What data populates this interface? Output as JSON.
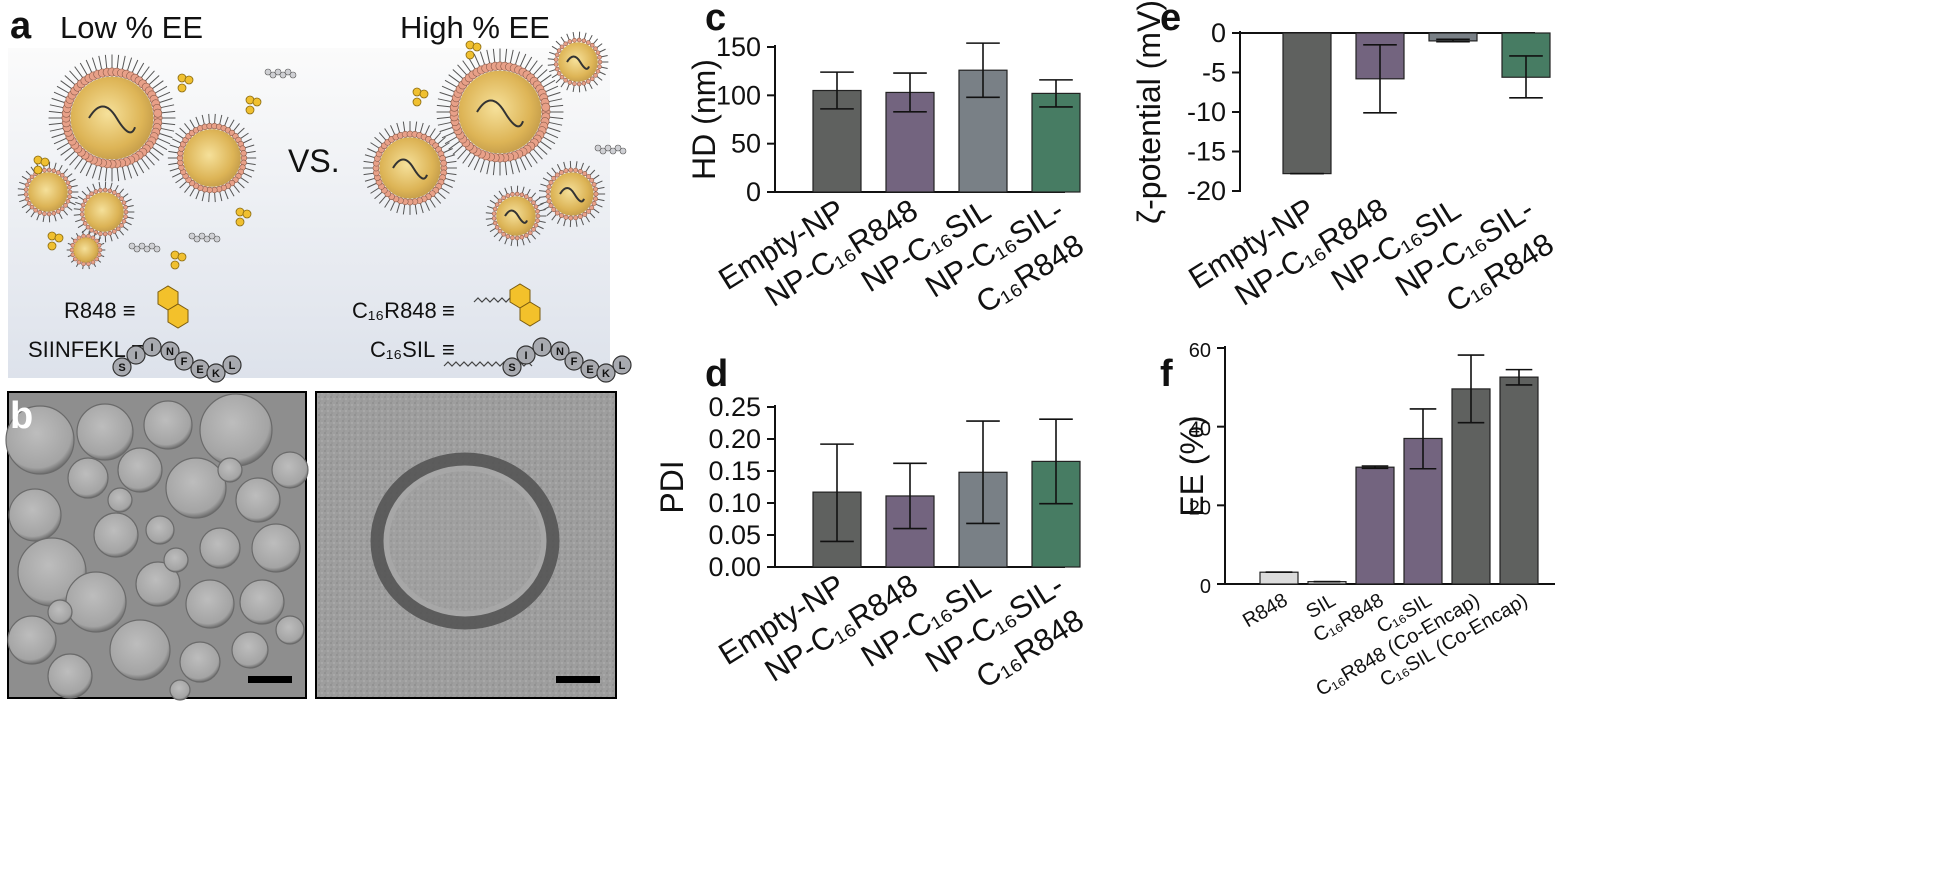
{
  "panel_a": {
    "letter": "a",
    "left_title": "Low % EE",
    "right_title": "High % EE",
    "vs": "VS.",
    "legend_left": [
      "R848 ≡",
      "SIINFEKL ≡"
    ],
    "legend_right": [
      "C₁₆R848",
      "C₁₆SIL"
    ],
    "equiv": "≡",
    "peptide_letters": [
      "S",
      "I",
      "I",
      "N",
      "F",
      "E",
      "K",
      "L"
    ],
    "colors": {
      "shell": "#e8a088",
      "core": "#e0b030",
      "peptide": "#a8aab0",
      "background_top": "#fafafa",
      "background_bottom": "#dfe3ec"
    }
  },
  "panel_b": {
    "letter": "b"
  },
  "chart_data": [
    {
      "panel": "c",
      "type": "bar",
      "ylabel": "HD (nm)",
      "ylim": [
        0,
        150
      ],
      "yticks": [
        "0",
        "50",
        "100",
        "150"
      ],
      "categories": [
        "Empty-NP",
        "NP-C₁₆R848",
        "NP-C₁₆SIL",
        "NP-C₁₆SIL-"
      ],
      "category_second_lines": [
        "",
        "",
        "",
        "C₁₆R848"
      ],
      "values": [
        105,
        103,
        126,
        102
      ],
      "errors_upper": [
        124,
        123,
        154,
        116
      ],
      "errors_lower": [
        86,
        83,
        98,
        88
      ],
      "colors": [
        "#5f615f",
        "#73647f",
        "#798086",
        "#477c63"
      ]
    },
    {
      "panel": "d",
      "type": "bar",
      "ylabel": "PDI",
      "ylim": [
        0,
        0.25
      ],
      "yticks": [
        "0.00",
        "0.05",
        "0.10",
        "0.15",
        "0.20",
        "0.25"
      ],
      "categories": [
        "Empty-NP",
        "NP-C₁₆R848",
        "NP-C₁₆SIL",
        "NP-C₁₆SIL-"
      ],
      "category_second_lines": [
        "",
        "",
        "",
        "C₁₆R848"
      ],
      "values": [
        0.117,
        0.111,
        0.148,
        0.165
      ],
      "errors_upper": [
        0.192,
        0.162,
        0.228,
        0.231
      ],
      "errors_lower": [
        0.04,
        0.06,
        0.068,
        0.099
      ],
      "colors": [
        "#5f615f",
        "#73647f",
        "#798086",
        "#477c63"
      ]
    },
    {
      "panel": "e",
      "type": "bar",
      "ylabel": "ζ-potential (mV)",
      "ylim": [
        -20,
        0
      ],
      "yticks": [
        "0",
        "-5",
        "-10",
        "-15",
        "-20"
      ],
      "categories": [
        "Empty-NP",
        "NP-C₁₆R848",
        "NP-C₁₆SIL",
        "NP-C₁₆SIL-"
      ],
      "category_second_lines": [
        "",
        "",
        "",
        "C₁₆R848"
      ],
      "values": [
        -17.8,
        -5.8,
        -1.0,
        -5.6
      ],
      "errors_upper": [
        -17.8,
        -1.5,
        -0.8,
        -2.9
      ],
      "errors_lower": [
        -17.8,
        -10.1,
        -1.1,
        -8.2
      ],
      "colors": [
        "#5f615f",
        "#73647f",
        "#798086",
        "#477c63"
      ]
    },
    {
      "panel": "f",
      "type": "bar",
      "ylabel": "EE (%)",
      "ylim": [
        0,
        60
      ],
      "yticks": [
        "0",
        "20",
        "40",
        "60"
      ],
      "categories": [
        "R848",
        "SIL",
        "C₁₆R848",
        "C₁₆SIL",
        "C₁₆R848 (Co-Encap)",
        "C₁₆SIL (Co-Encap)"
      ],
      "values": [
        3.0,
        0.6,
        29.7,
        37.0,
        49.6,
        52.6
      ],
      "errors_upper": [
        3.0,
        0.6,
        30.0,
        44.5,
        58.2,
        54.5
      ],
      "errors_lower": [
        3.0,
        0.6,
        29.4,
        29.3,
        41.0,
        50.6
      ],
      "colors": [
        "#dcdcdc",
        "#dcdcdc",
        "#73647f",
        "#73647f",
        "#5f615f",
        "#5f615f"
      ]
    }
  ]
}
